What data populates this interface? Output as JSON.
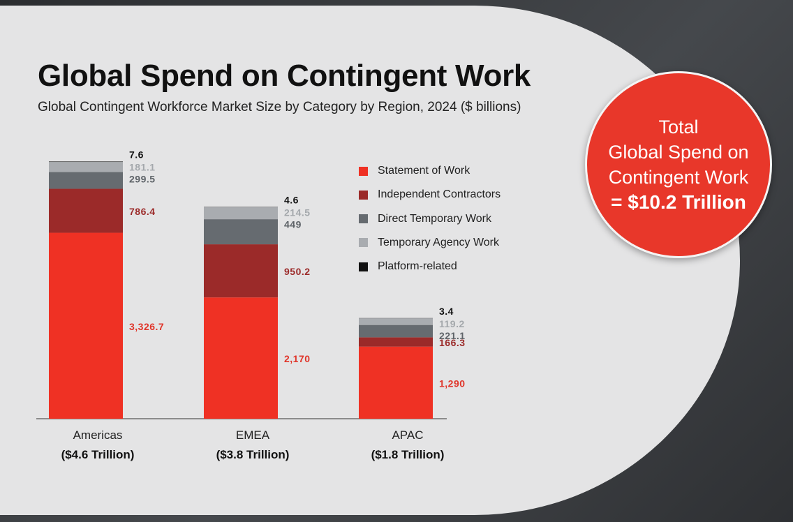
{
  "title": "Global Spend on Contingent Work",
  "subtitle": "Global Contingent Workforce Market Size by Category by Region, 2024 ($ billions)",
  "total": {
    "line1": "Total",
    "line2": "Global Spend on",
    "line3": "Contingent Work",
    "line4": "= $10.2 Trillion"
  },
  "chart_data": {
    "type": "bar",
    "stacked": true,
    "categories": [
      "Americas",
      "EMEA",
      "APAC"
    ],
    "category_totals": [
      "($4.6 Trillion)",
      "($3.8 Trillion)",
      "($1.8 Trillion)"
    ],
    "series": [
      {
        "name": "Statement of Work",
        "values": [
          3326.7,
          2170,
          1290
        ],
        "labels": [
          "3,326.7",
          "2,170",
          "1,290"
        ],
        "color": "#ef3124",
        "label_color": "#e0352a"
      },
      {
        "name": "Independent Contractors",
        "values": [
          786.4,
          950.2,
          166.3
        ],
        "labels": [
          "786.4",
          "950.2",
          "166.3"
        ],
        "color": "#9b2a29",
        "label_color": "#9b2a29"
      },
      {
        "name": "Direct Temporary Work",
        "values": [
          299.5,
          449,
          221.1
        ],
        "labels": [
          "299.5",
          "449",
          "221.1"
        ],
        "color": "#666b70",
        "label_color": "#5e6368"
      },
      {
        "name": "Temporary Agency Work",
        "values": [
          181.1,
          214.5,
          119.2
        ],
        "labels": [
          "181.1",
          "214.5",
          "119.2"
        ],
        "color": "#a9acb0",
        "label_color": "#a4a8ac"
      },
      {
        "name": "Platform-related",
        "values": [
          7.6,
          4.6,
          3.4
        ],
        "labels": [
          "7.6",
          "4.6",
          "3.4"
        ],
        "color": "#111111",
        "label_color": "#111111"
      }
    ],
    "legend_position": "right",
    "grid": false
  }
}
